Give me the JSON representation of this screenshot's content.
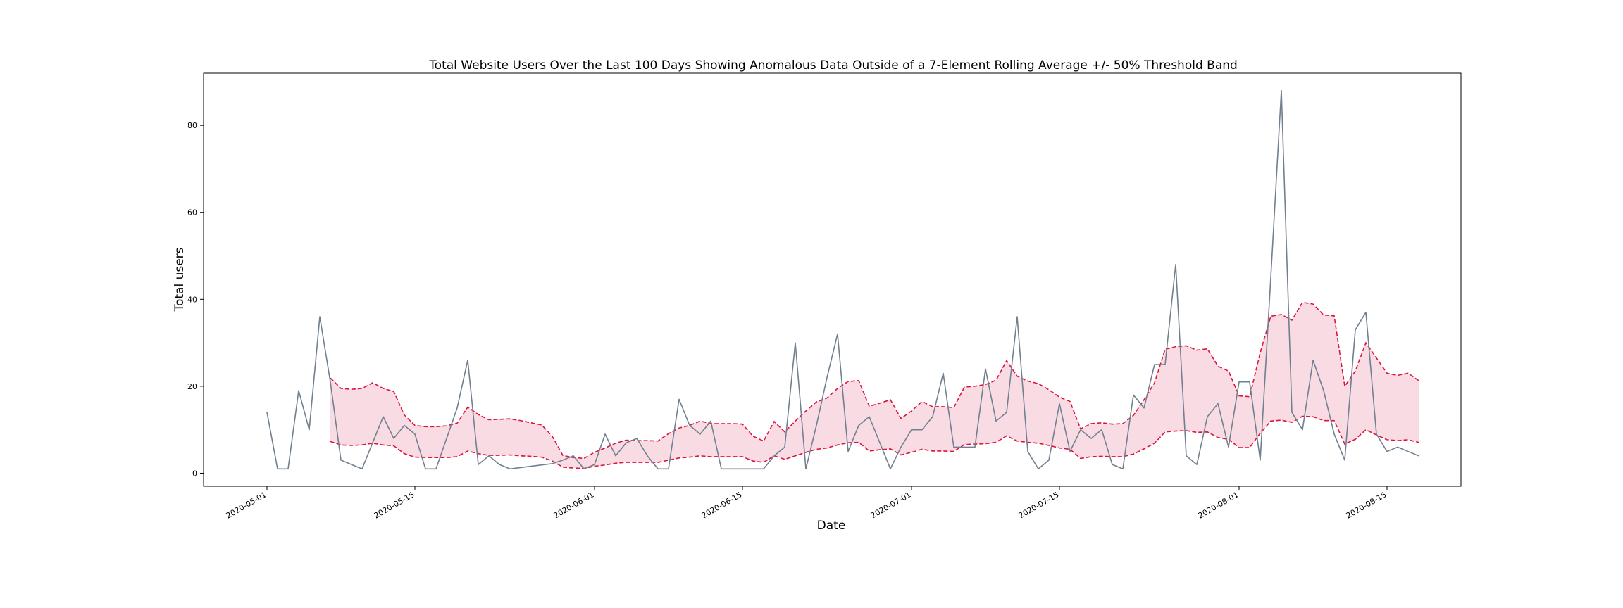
{
  "chart_data": {
    "type": "line",
    "title": "Total Website Users Over the Last 100 Days Showing Anomalous Data Outside of a 7-Element Rolling Average +/- 50% Threshold Band",
    "xlabel": "Date",
    "ylabel": "Total users",
    "x_start": "2020-05-01",
    "xlim": [
      "2020-04-25",
      "2020-08-22"
    ],
    "ylim": [
      -3,
      92
    ],
    "xticks": [
      "2020-05-01",
      "2020-05-15",
      "2020-06-01",
      "2020-06-15",
      "2020-07-01",
      "2020-07-15",
      "2020-08-01",
      "2020-08-15"
    ],
    "yticks": [
      0,
      20,
      40,
      60,
      80
    ],
    "grid": false,
    "colors": {
      "line": "#708090",
      "band_edge": "#dc143c",
      "band_fill": "#f9dce3"
    },
    "series": [
      {
        "values": [
          14,
          1,
          1,
          19,
          10,
          36,
          21,
          3,
          2,
          1,
          7,
          13,
          8,
          11,
          9,
          1,
          1,
          8,
          15,
          26,
          2,
          4,
          2,
          1,
          1.3,
          1.6,
          1.9,
          2.2,
          3,
          4,
          1,
          2,
          9,
          4,
          7,
          8,
          4,
          1,
          1,
          17,
          11,
          9,
          12,
          1,
          1,
          1,
          1,
          1,
          4,
          6,
          30,
          1,
          11,
          22,
          32,
          5,
          11,
          13,
          7,
          1,
          6,
          10,
          10,
          13,
          23,
          6,
          6,
          6,
          24,
          12,
          14,
          36,
          5,
          1,
          3,
          16,
          5,
          10,
          8,
          10,
          2,
          1,
          18,
          15,
          25,
          25,
          48,
          4,
          2,
          13,
          16,
          6,
          21,
          21,
          3,
          45,
          88,
          14,
          10,
          26,
          19,
          9,
          3,
          33,
          37,
          9,
          5,
          6,
          5,
          4
        ]
      }
    ],
    "band": {
      "start_index": 6,
      "upper": [
        21.9,
        19.5,
        19.3,
        19.5,
        20.8,
        19.5,
        18.8,
        13.4,
        11.0,
        10.7,
        10.7,
        10.9,
        11.5,
        15.2,
        13.5,
        12.3,
        12.4,
        12.5,
        12.1,
        11.6,
        11.1,
        8.5,
        4.1,
        3.6,
        3.4,
        4.8,
        5.8,
        6.9,
        7.6,
        7.5,
        7.5,
        7.4,
        9.1,
        10.4,
        11.0,
        12.0,
        11.4,
        11.4,
        11.4,
        11.3,
        8.5,
        7.4,
        11.9,
        9.5,
        12.0,
        14.3,
        16.4,
        17.3,
        19.5,
        21.1,
        21.3,
        15.4,
        16.1,
        16.9,
        12.6,
        14.3,
        16.5,
        15.3,
        15.3,
        15.1,
        19.8,
        20.0,
        20.4,
        21.4,
        25.9,
        22.3,
        21.2,
        20.6,
        19.2,
        17.5,
        16.5,
        10.2,
        11.4,
        11.6,
        11.3,
        11.4,
        13.3,
        16.9,
        20.8,
        28.5,
        29.1,
        29.3,
        28.3,
        28.6,
        24.6,
        23.5,
        17.8,
        17.6,
        27.7,
        36.1,
        36.5,
        35.2,
        39.3,
        38.9,
        36.4,
        36.2,
        20.0,
        23.5,
        30.0,
        26.5,
        23.0,
        22.5,
        23.0,
        21.3
      ],
      "lower": [
        7.3,
        6.5,
        6.4,
        6.5,
        6.9,
        6.5,
        6.3,
        4.5,
        3.7,
        3.6,
        3.6,
        3.6,
        3.8,
        5.1,
        4.5,
        4.1,
        4.1,
        4.2,
        4.0,
        3.9,
        3.7,
        2.8,
        1.4,
        1.2,
        1.1,
        1.6,
        1.9,
        2.3,
        2.5,
        2.5,
        2.5,
        2.5,
        3.0,
        3.5,
        3.7,
        4.0,
        3.8,
        3.8,
        3.8,
        3.8,
        2.8,
        2.5,
        4.0,
        3.2,
        4.0,
        4.8,
        5.5,
        5.8,
        6.5,
        7.0,
        7.1,
        5.1,
        5.4,
        5.6,
        4.2,
        4.8,
        5.5,
        5.1,
        5.1,
        5.0,
        6.6,
        6.7,
        6.8,
        7.1,
        8.6,
        7.4,
        7.1,
        6.9,
        6.4,
        5.8,
        5.5,
        3.4,
        3.8,
        3.9,
        3.8,
        3.8,
        4.4,
        5.6,
        6.9,
        9.5,
        9.7,
        9.8,
        9.4,
        9.5,
        8.2,
        7.8,
        5.9,
        5.9,
        9.2,
        12.0,
        12.2,
        11.7,
        13.1,
        13.0,
        12.1,
        12.1,
        6.7,
        7.8,
        10.0,
        8.8,
        7.7,
        7.5,
        7.7,
        7.1
      ]
    }
  }
}
